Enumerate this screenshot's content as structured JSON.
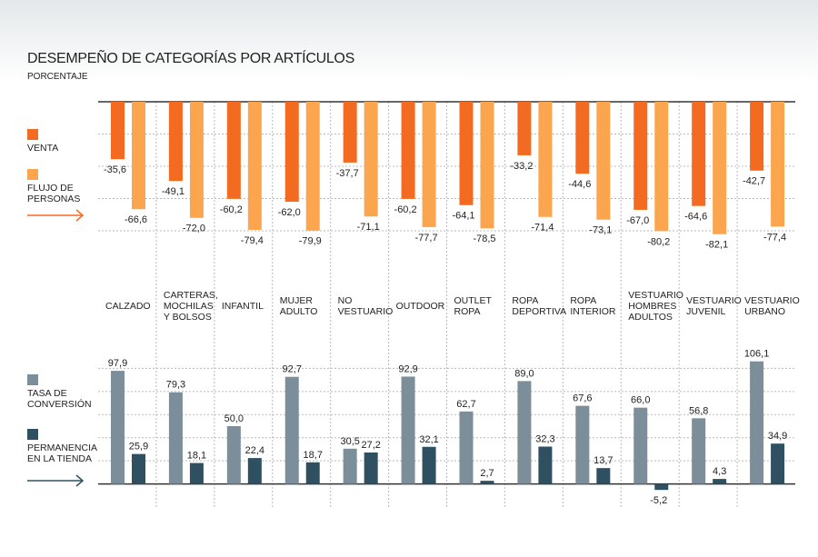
{
  "chart_data": {
    "type": "bar",
    "title": "DESEMPEÑO DE CATEGORÍAS POR ARTÍCULOS",
    "subtitle": "PORCENTAJE",
    "categories": [
      "CALZADO",
      "CARTERAS, MOCHILAS Y BOLSOS",
      "INFANTIL",
      "MUJER ADULTO",
      "NO VESTUARIO",
      "OUTDOOR",
      "OUTLET ROPA",
      "ROPA DEPORTIVA",
      "ROPA INTERIOR",
      "VESTUARIO HOMBRES ADULTOS",
      "VESTUARIO JUVENIL",
      "VESTUARIO URBANO"
    ],
    "panels": [
      {
        "ylim": [
          -100,
          0
        ],
        "yticks": [
          0,
          -20,
          -40,
          -60,
          -80
        ],
        "grid": true,
        "series": [
          {
            "name": "VENTA",
            "color": "#f26b21",
            "values": [
              -35.6,
              -49.1,
              -60.2,
              -62.0,
              -37.7,
              -60.2,
              -64.1,
              -33.2,
              -44.6,
              -67.0,
              -64.6,
              -42.7
            ],
            "value_labels": [
              "-35,6",
              "-49,1",
              "-60,2",
              "-62,0",
              "-37,7",
              "-60,2",
              "-64,1",
              "-33,2",
              "-44,6",
              "-67,0",
              "-64,6",
              "-42,7"
            ]
          },
          {
            "name": "FLUJO DE PERSONAS",
            "color": "#fba54f",
            "values": [
              -66.6,
              -72.0,
              -79.4,
              -79.9,
              -71.1,
              -77.7,
              -78.5,
              -71.4,
              -73.1,
              -80.2,
              -82.1,
              -77.4
            ],
            "value_labels": [
              "-66,6",
              "-72,0",
              "-79,4",
              "-79,9",
              "-71,1",
              "-77,7",
              "-78,5",
              "-71,4",
              "-73,1",
              "-80,2",
              "-82,1",
              "-77,4"
            ]
          }
        ]
      },
      {
        "ylim": [
          -20,
          120
        ],
        "yticks": [
          0,
          20,
          40,
          60,
          80,
          100
        ],
        "grid": true,
        "series": [
          {
            "name": "TASA DE CONVERSIÓN",
            "color": "#7b8e9a",
            "values": [
              97.9,
              79.3,
              50.0,
              92.7,
              30.5,
              92.9,
              62.7,
              89.0,
              67.6,
              66.0,
              56.8,
              106.1
            ],
            "value_labels": [
              "97,9",
              "79,3",
              "50,0",
              "92,7",
              "30,5",
              "92,9",
              "62,7",
              "89,0",
              "67,6",
              "66,0",
              "56,8",
              "106,1"
            ]
          },
          {
            "name": "PERMANENCIA EN LA TIENDA",
            "color": "#2f5060",
            "values": [
              25.9,
              18.1,
              22.4,
              18.7,
              27.2,
              32.1,
              2.7,
              32.3,
              13.7,
              -5.2,
              4.3,
              34.9
            ],
            "value_labels": [
              "25,9",
              "18,1",
              "22,4",
              "18,7",
              "27,2",
              "32,1",
              "2,7",
              "32,3",
              "13,7",
              "-5,2",
              "4,3",
              "34,9"
            ]
          }
        ]
      }
    ]
  }
}
